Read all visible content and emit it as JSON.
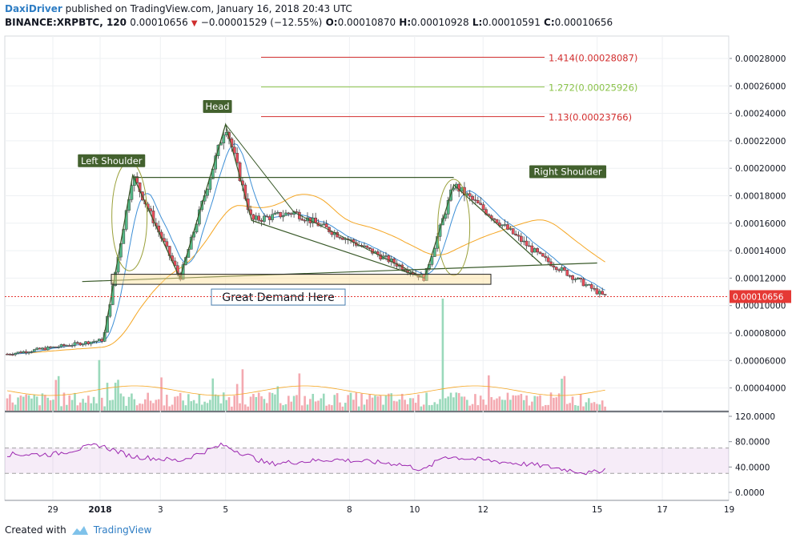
{
  "header": {
    "author": "DaxiDriver",
    "published_text": "published on TradingView.com, January 16, 2018 20:43 UTC",
    "symbol": "BINANCE:XRPBTC, 120",
    "last": "0.00010656",
    "change_arrow": "▼",
    "change": "−0.00001529 (−12.55%)",
    "o_label": "O:",
    "o_value": "0.00010870",
    "h_label": "H:",
    "h_value": "0.00010928",
    "l_label": "L:",
    "l_value": "0.00010591",
    "c_label": "C:",
    "c_value": "0.00010656"
  },
  "footer": {
    "created_with": "Created with",
    "brand": "TradingView"
  },
  "colors": {
    "up": "#53b987",
    "down": "#eb4d5c",
    "ma_fast": "#3d8fd6",
    "ma_slow": "#f5a623",
    "pattern": "#3a5a2a",
    "rsi": "#9c27b0",
    "price_tag": "#e53935"
  },
  "chart_data": [
    {
      "type": "candlestick",
      "title": "BINANCE:XRPBTC, 120",
      "x_tick_labels": [
        "29",
        "2018",
        "3",
        "5",
        "8",
        "10",
        "12",
        "15",
        "17",
        "19"
      ],
      "y_tick_labels": [
        "0.00028000",
        "0.00026000",
        "0.00024000",
        "0.00022000",
        "0.00020000",
        "0.00018000",
        "0.00016000",
        "0.00014000",
        "0.00012000",
        "0.00010000",
        "0.00008000",
        "0.00006000",
        "0.00004000"
      ],
      "last_price_label": "0.00010656",
      "fibonacci_levels": [
        {
          "label": "1.414(0.00028087)",
          "price": 0.00028087,
          "color": "#d32f2f"
        },
        {
          "label": "1.272(0.00025926)",
          "price": 0.00025926,
          "color": "#8bc34a"
        },
        {
          "label": "1.13(0.00023766)",
          "price": 0.00023766,
          "color": "#d32f2f"
        }
      ],
      "annotations": [
        {
          "text": "Left Shoulder",
          "x_day": 1.8,
          "price": 0.0002055
        },
        {
          "text": "Head",
          "x_day": 5.05,
          "price": 0.000245
        },
        {
          "text": "Right Shoulder",
          "x_day": 15.8,
          "price": 0.0001975
        },
        {
          "text": "Great Demand Here",
          "x_day": 6.4,
          "price": 0.0001062
        }
      ],
      "neckline_price": 0.00019333,
      "demand_zone": [
        0.0001155,
        0.0001228
      ],
      "key_points": [
        {
          "day": 1.55,
          "price": 7.5e-05
        },
        {
          "day": 2.45,
          "price": 0.000195
        },
        {
          "day": 3.9,
          "price": 0.00012
        },
        {
          "day": 5.3,
          "price": 0.000232
        },
        {
          "day": 6.1,
          "price": 0.000162
        },
        {
          "day": 7.4,
          "price": 0.000168
        },
        {
          "day": 11.4,
          "price": 0.00012
        },
        {
          "day": 12.3,
          "price": 0.000188
        },
        {
          "day": 15.0,
          "price": 0.000135
        },
        {
          "day": 16.9,
          "price": 0.000107
        }
      ],
      "volume_spikes": [
        {
          "day": 11.95,
          "relative": 1.0
        },
        {
          "day": 1.45,
          "relative": 0.55
        },
        {
          "day": 5.8,
          "relative": 0.45
        }
      ]
    },
    {
      "type": "line",
      "title": "RSI",
      "y_tick_labels": [
        "120.0000",
        "80.0000",
        "40.0000",
        "0.0000"
      ],
      "ylim": [
        0,
        120
      ],
      "bands": [
        30,
        70
      ],
      "key_points": [
        {
          "day": 0.0,
          "value": 60
        },
        {
          "day": 1.4,
          "value": 75
        },
        {
          "day": 2.4,
          "value": 57
        },
        {
          "day": 3.9,
          "value": 50
        },
        {
          "day": 5.2,
          "value": 75
        },
        {
          "day": 6.6,
          "value": 45
        },
        {
          "day": 8.6,
          "value": 52
        },
        {
          "day": 10.6,
          "value": 45
        },
        {
          "day": 11.4,
          "value": 35
        },
        {
          "day": 12.0,
          "value": 57
        },
        {
          "day": 15.0,
          "value": 42
        },
        {
          "day": 16.5,
          "value": 30
        },
        {
          "day": 17.0,
          "value": 38
        }
      ]
    }
  ]
}
